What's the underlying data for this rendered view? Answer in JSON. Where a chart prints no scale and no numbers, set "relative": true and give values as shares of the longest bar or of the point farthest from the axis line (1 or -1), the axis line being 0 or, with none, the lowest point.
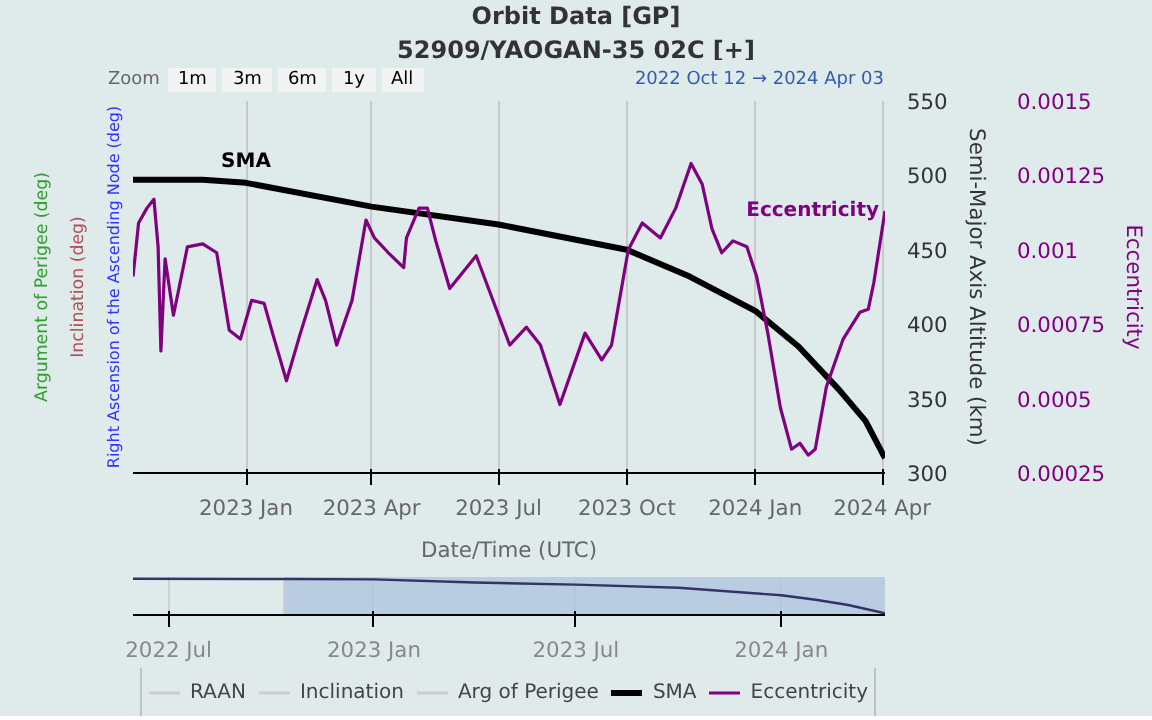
{
  "chart_data": [
    {
      "type": "line",
      "title": "Orbit Data [GP]",
      "subtitle": "52909/YAOGAN-35 02C [+]",
      "xlabel": "Date/Time (UTC)",
      "ylabel": "Right Ascension of the Ascending Node (deg)",
      "y2label": "Semi-Major Axis Altitude (km)",
      "y3label": "Eccentricity",
      "annotations": [
        "Inclination (deg)",
        "Argument of Perigee (deg)",
        "Zoom",
        "1m",
        "3m",
        "6m",
        "1y",
        "All",
        "2022 Oct 12 → 2024 Apr 03"
      ],
      "xlim": [
        "2022-10-12",
        "2024-04-03"
      ],
      "xticks": [
        {
          "value": "2023-01-01",
          "label": "2023 Jan"
        },
        {
          "value": "2023-04-01",
          "label": "2023 Apr"
        },
        {
          "value": "2023-07-01",
          "label": "2023 Jul"
        },
        {
          "value": "2023-10-01",
          "label": "2023 Oct"
        },
        {
          "value": "2024-01-01",
          "label": "2024 Jan"
        },
        {
          "value": "2024-04-01",
          "label": "2024 Apr"
        }
      ],
      "y2lim": [
        300,
        550
      ],
      "y2ticks": [
        300,
        350,
        400,
        450,
        500,
        550
      ],
      "y3lim": [
        0.00025,
        0.0015
      ],
      "y3ticks": [
        0.00025,
        0.0005,
        0.00075,
        0.001,
        0.00125,
        0.0015
      ],
      "grid": "x",
      "legend": "bottom",
      "series": [
        {
          "name": "RAAN",
          "color": "#cccccc"
        },
        {
          "name": "Inclination",
          "color": "#cccccc"
        },
        {
          "name": "Arg of Perigee",
          "color": "#cccccc"
        },
        {
          "name": "SMA",
          "color": "#000000",
          "axis": "y2",
          "x": [
            "2022-10-12",
            "2022-12-01",
            "2023-01-01",
            "2023-04-01",
            "2023-07-01",
            "2023-10-01",
            "2023-11-15",
            "2024-01-01",
            "2024-02-01",
            "2024-03-01",
            "2024-03-20",
            "2024-04-03"
          ],
          "values": [
            497,
            497,
            495,
            479,
            467,
            450,
            432,
            409,
            385,
            356,
            335,
            310
          ]
        },
        {
          "name": "Eccentricity",
          "color": "#800080",
          "axis": "y3",
          "x": [
            "2022-10-12",
            "2022-10-16",
            "2022-10-22",
            "2022-10-27",
            "2022-10-30",
            "2022-11-01",
            "2022-11-04",
            "2022-11-10",
            "2022-11-20",
            "2022-12-01",
            "2022-12-11",
            "2022-12-20",
            "2022-12-28",
            "2023-01-05",
            "2023-01-14",
            "2023-01-20",
            "2023-01-30",
            "2023-02-09",
            "2023-02-21",
            "2023-02-27",
            "2023-03-07",
            "2023-03-18",
            "2023-03-28",
            "2023-04-03",
            "2023-04-13",
            "2023-04-24",
            "2023-04-26",
            "2023-05-05",
            "2023-05-11",
            "2023-05-17",
            "2023-05-27",
            "2023-06-15",
            "2023-07-09",
            "2023-07-21",
            "2023-07-31",
            "2023-08-14",
            "2023-09-01",
            "2023-09-13",
            "2023-09-20",
            "2023-10-02",
            "2023-10-12",
            "2023-10-25",
            "2023-11-05",
            "2023-11-16",
            "2023-11-24",
            "2023-12-01",
            "2023-12-08",
            "2023-12-16",
            "2023-12-26",
            "2024-01-02",
            "2024-01-10",
            "2024-01-19",
            "2024-01-27",
            "2024-02-02",
            "2024-02-08",
            "2024-02-13",
            "2024-02-21",
            "2024-03-04",
            "2024-03-16",
            "2024-03-22",
            "2024-03-26",
            "2024-04-03"
          ],
          "values": [
            0.00091,
            0.00109,
            0.00114,
            0.00117,
            0.00101,
            0.00066,
            0.00097,
            0.00078,
            0.00101,
            0.00102,
            0.00099,
            0.00073,
            0.0007,
            0.00083,
            0.00082,
            0.00072,
            0.00056,
            0.00072,
            0.0009,
            0.00083,
            0.00068,
            0.00083,
            0.0011,
            0.00104,
            0.00099,
            0.00094,
            0.00104,
            0.00114,
            0.00114,
            0.00103,
            0.00087,
            0.00098,
            0.00068,
            0.00074,
            0.00068,
            0.00048,
            0.00072,
            0.00063,
            0.00068,
            0.001,
            0.00109,
            0.00104,
            0.00114,
            0.00129,
            0.00122,
            0.00107,
            0.00099,
            0.00103,
            0.00101,
            0.00091,
            0.00072,
            0.00047,
            0.00033,
            0.00035,
            0.00031,
            0.00033,
            0.00054,
            0.0007,
            0.00079,
            0.0008,
            0.00089,
            0.00113
          ]
        }
      ]
    },
    {
      "type": "line",
      "relative": true,
      "grid": "x",
      "xlim": [
        "2022-05-30",
        "2024-04-03"
      ],
      "xticks": [
        {
          "value": "2022-07-01",
          "label": "2022 Jul"
        },
        {
          "value": "2023-01-01",
          "label": "2023 Jan"
        },
        {
          "value": "2023-07-01",
          "label": "2023 Jul"
        },
        {
          "value": "2024-01-01",
          "label": "2024 Jan"
        }
      ],
      "bands": [
        {
          "axis": "x",
          "from": "2022-10-12",
          "to": "2024-04-03",
          "color": "#b0c4de"
        }
      ],
      "series": [
        {
          "color": "#333366",
          "x": [
            "2022-05-30",
            "2022-10-12",
            "2023-01-01",
            "2023-04-01",
            "2023-07-01",
            "2023-10-01",
            "2024-01-01",
            "2024-02-01",
            "2024-03-01",
            "2024-04-03"
          ],
          "values": [
            1,
            0.99,
            0.98,
            0.89,
            0.83,
            0.74,
            0.52,
            0.39,
            0.24,
            0
          ]
        }
      ]
    }
  ]
}
